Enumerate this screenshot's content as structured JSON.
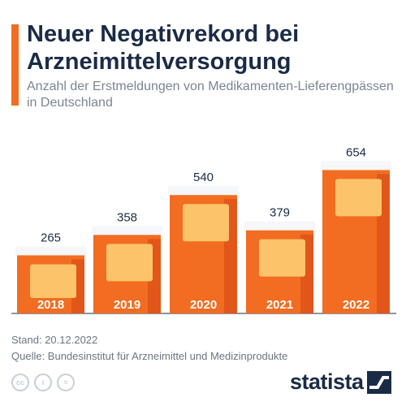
{
  "header": {
    "title": "Neuer Negativrekord bei Arzneimittelversorgung",
    "subtitle": "Anzahl der Erstmeldungen von Medikamenten-Lieferengpässen in Deutschland"
  },
  "chart_data": {
    "type": "bar",
    "categories": [
      "2018",
      "2019",
      "2020",
      "2021",
      "2022"
    ],
    "values": [
      265,
      358,
      540,
      379,
      654
    ],
    "ylim": [
      0,
      700
    ],
    "grid": false,
    "legend": "none",
    "data_labels": true
  },
  "colors": {
    "title": "#1a2b45",
    "bar_orange": "#f26d21",
    "bar_dark": "#e2561a",
    "label_patch": "#fcc36a",
    "cap": "#f5f7fa"
  },
  "footer": {
    "stand": "Stand: 20.12.2022",
    "quelle": "Quelle: Bundesinstitut für Arzneimittel und Medizinprodukte",
    "cc_icons": [
      "cc-icon",
      "person-icon",
      "equals-icon"
    ],
    "cc_glyphs": [
      "cc",
      "i",
      "="
    ],
    "logo_text": "statista"
  }
}
